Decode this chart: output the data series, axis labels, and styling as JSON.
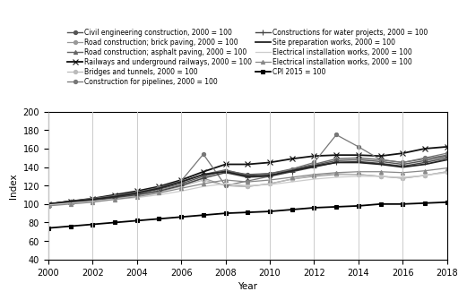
{
  "years": [
    2000,
    2001,
    2002,
    2003,
    2004,
    2005,
    2006,
    2007,
    2008,
    2009,
    2010,
    2011,
    2012,
    2013,
    2014,
    2015,
    2016,
    2017,
    2018
  ],
  "series": [
    {
      "label": "Civil engineering construction, 2000 = 100",
      "color": "#555555",
      "marker": "o",
      "markersize": 3,
      "linewidth": 1.0,
      "linestyle": "-",
      "data": [
        100,
        103,
        105,
        108,
        111,
        116,
        122,
        130,
        136,
        132,
        133,
        137,
        142,
        147,
        148,
        146,
        143,
        147,
        152
      ]
    },
    {
      "label": "Road construction; brick paving, 2000 = 100",
      "color": "#999999",
      "marker": "o",
      "markersize": 3,
      "linewidth": 0.9,
      "linestyle": "-",
      "data": [
        99,
        101,
        103,
        107,
        110,
        115,
        121,
        128,
        120,
        119,
        122,
        127,
        130,
        132,
        132,
        130,
        128,
        131,
        135
      ]
    },
    {
      "label": "Road construction; asphalt paving, 2000 = 100",
      "color": "#666666",
      "marker": "^",
      "markersize": 3,
      "linewidth": 1.0,
      "linestyle": "-",
      "data": [
        100,
        103,
        105,
        108,
        111,
        117,
        124,
        132,
        137,
        131,
        133,
        138,
        143,
        149,
        150,
        148,
        145,
        149,
        153
      ]
    },
    {
      "label": "Railways and underground railways, 2000 = 100",
      "color": "#111111",
      "marker": "x",
      "markersize": 4,
      "linewidth": 1.3,
      "linestyle": "-",
      "data": [
        100,
        103,
        106,
        110,
        114,
        119,
        126,
        135,
        143,
        143,
        145,
        149,
        152,
        153,
        153,
        152,
        155,
        160,
        162
      ]
    },
    {
      "label": "Bridges and tunnels, 2000 = 100",
      "color": "#bbbbbb",
      "marker": "o",
      "markersize": 3,
      "linewidth": 0.9,
      "linestyle": "-",
      "data": [
        99,
        101,
        103,
        106,
        109,
        113,
        119,
        126,
        120,
        119,
        122,
        127,
        131,
        133,
        132,
        130,
        128,
        131,
        135
      ]
    },
    {
      "label": "Construction for pipelines, 2000 = 100",
      "color": "#777777",
      "marker": "o",
      "markersize": 3,
      "linewidth": 0.9,
      "linestyle": "-",
      "data": [
        100,
        103,
        106,
        109,
        113,
        118,
        125,
        154,
        120,
        125,
        130,
        138,
        145,
        175,
        162,
        148,
        145,
        150,
        155
      ]
    },
    {
      "label": "Constructions for water projects, 2000 = 100",
      "color": "#444444",
      "marker": "+",
      "markersize": 4,
      "linewidth": 1.0,
      "linestyle": "-",
      "data": [
        100,
        102,
        104,
        107,
        110,
        114,
        120,
        128,
        134,
        129,
        130,
        135,
        140,
        145,
        146,
        144,
        141,
        145,
        150
      ]
    },
    {
      "label": "Site preparation works, 2000 = 100",
      "color": "#222222",
      "marker": "None",
      "markersize": 3,
      "linewidth": 1.3,
      "linestyle": "-",
      "data": [
        100,
        103,
        105,
        108,
        112,
        117,
        124,
        132,
        135,
        130,
        131,
        136,
        141,
        145,
        145,
        143,
        140,
        143,
        148
      ]
    },
    {
      "label": "Electrical installation works, 2000 = 100",
      "color": "#cccccc",
      "marker": "None",
      "markersize": 3,
      "linewidth": 0.9,
      "linestyle": "-",
      "data": [
        99,
        101,
        103,
        105,
        107,
        110,
        114,
        119,
        122,
        120,
        121,
        124,
        127,
        129,
        130,
        130,
        129,
        131,
        134
      ]
    },
    {
      "label": "Electrical installation works, 2000 = 100",
      "color": "#888888",
      "marker": "^",
      "markersize": 3,
      "linewidth": 0.9,
      "linestyle": "-",
      "data": [
        98,
        100,
        102,
        105,
        108,
        112,
        117,
        122,
        126,
        124,
        126,
        129,
        132,
        134,
        135,
        135,
        134,
        136,
        139
      ]
    },
    {
      "label": "CPI 2015 = 100",
      "color": "#000000",
      "marker": "s",
      "markersize": 3.5,
      "linewidth": 1.3,
      "linestyle": "-",
      "data": [
        74,
        76,
        78,
        80,
        82,
        84,
        86,
        88,
        90,
        91,
        92,
        94,
        96,
        97,
        98,
        100,
        100,
        101,
        102
      ]
    }
  ],
  "legend_order_left": [
    0,
    2,
    4,
    6,
    8,
    10
  ],
  "legend_order_right": [
    1,
    3,
    5,
    7,
    9
  ],
  "xlabel": "Year",
  "ylabel": "Index",
  "xlim": [
    2000,
    2018
  ],
  "ylim": [
    40,
    200
  ],
  "yticks": [
    40,
    60,
    80,
    100,
    120,
    140,
    160,
    180,
    200
  ],
  "xticks": [
    2000,
    2002,
    2004,
    2006,
    2008,
    2010,
    2012,
    2014,
    2016,
    2018
  ],
  "grid_color": "#cccccc",
  "bg_color": "#ffffff",
  "legend_fontsize": 5.5,
  "axis_fontsize": 7.5,
  "tick_fontsize": 7
}
